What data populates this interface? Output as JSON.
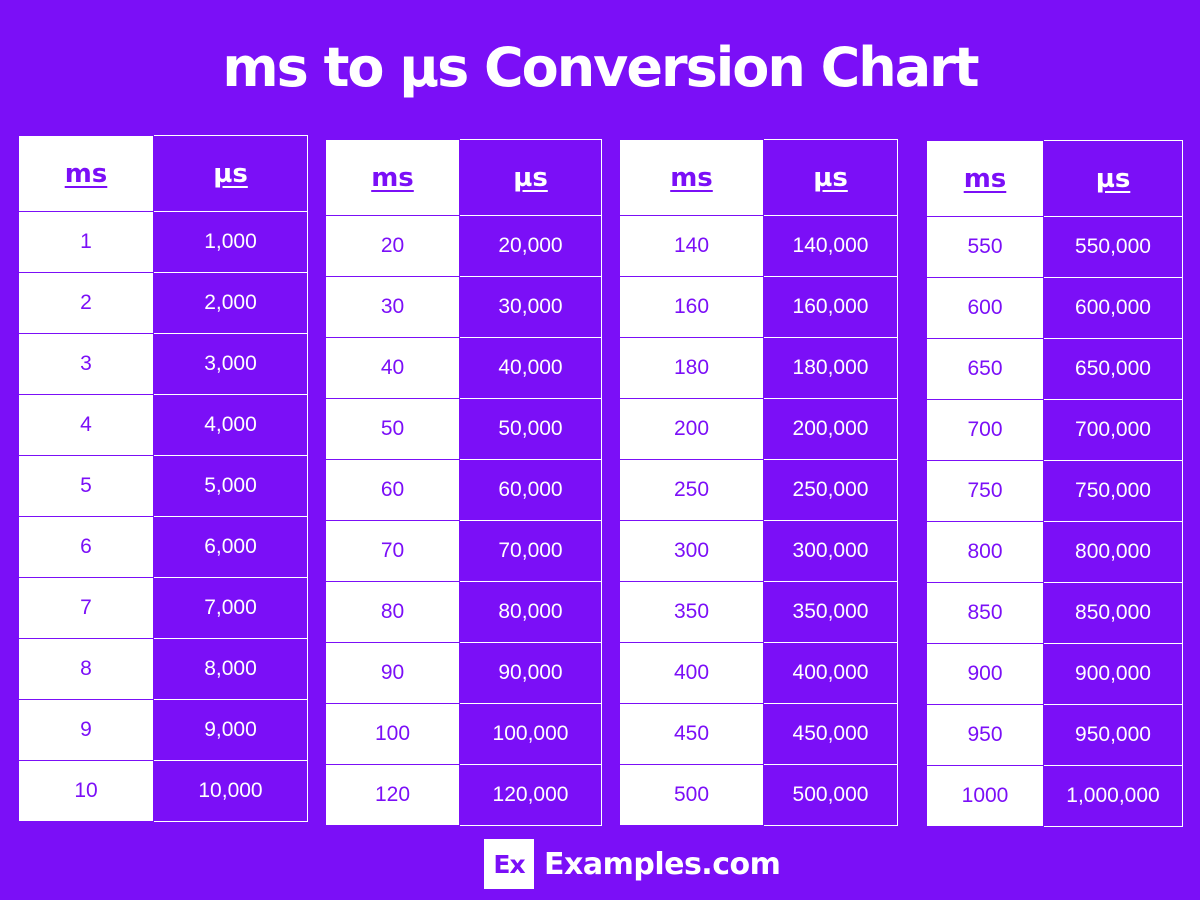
{
  "title": "ms to µs Conversion Chart",
  "colors": {
    "background": "#7b0ff7",
    "ms_cell_bg": "#ffffff",
    "ms_cell_text": "#7b0ff7",
    "us_cell_bg": "#7b0ff7",
    "us_cell_text": "#ffffff"
  },
  "brand": {
    "logo_text": "Ex",
    "name": "Examples.com"
  },
  "chart_data": {
    "type": "table",
    "title": "ms to µs Conversion Chart",
    "columns": [
      "ms",
      "µs"
    ],
    "tables": [
      {
        "headers": [
          "ms",
          "µs"
        ],
        "rows": [
          [
            "1",
            "1,000"
          ],
          [
            "2",
            "2,000"
          ],
          [
            "3",
            "3,000"
          ],
          [
            "4",
            "4,000"
          ],
          [
            "5",
            "5,000"
          ],
          [
            "6",
            "6,000"
          ],
          [
            "7",
            "7,000"
          ],
          [
            "8",
            "8,000"
          ],
          [
            "9",
            "9,000"
          ],
          [
            "10",
            "10,000"
          ]
        ]
      },
      {
        "headers": [
          "ms",
          "µs"
        ],
        "rows": [
          [
            "20",
            "20,000"
          ],
          [
            "30",
            "30,000"
          ],
          [
            "40",
            "40,000"
          ],
          [
            "50",
            "50,000"
          ],
          [
            "60",
            "60,000"
          ],
          [
            "70",
            "70,000"
          ],
          [
            "80",
            "80,000"
          ],
          [
            "90",
            "90,000"
          ],
          [
            "100",
            "100,000"
          ],
          [
            "120",
            "120,000"
          ]
        ]
      },
      {
        "headers": [
          "ms",
          "µs"
        ],
        "rows": [
          [
            "140",
            "140,000"
          ],
          [
            "160",
            "160,000"
          ],
          [
            "180",
            "180,000"
          ],
          [
            "200",
            "200,000"
          ],
          [
            "250",
            "250,000"
          ],
          [
            "300",
            "300,000"
          ],
          [
            "350",
            "350,000"
          ],
          [
            "400",
            "400,000"
          ],
          [
            "450",
            "450,000"
          ],
          [
            "500",
            "500,000"
          ]
        ]
      },
      {
        "headers": [
          "ms",
          "µs"
        ],
        "rows": [
          [
            "550",
            "550,000"
          ],
          [
            "600",
            "600,000"
          ],
          [
            "650",
            "650,000"
          ],
          [
            "700",
            "700,000"
          ],
          [
            "750",
            "750,000"
          ],
          [
            "800",
            "800,000"
          ],
          [
            "850",
            "850,000"
          ],
          [
            "900",
            "900,000"
          ],
          [
            "950",
            "950,000"
          ],
          [
            "1000",
            "1,000,000"
          ]
        ]
      }
    ]
  }
}
